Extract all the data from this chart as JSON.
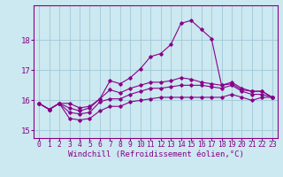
{
  "x": [
    0,
    1,
    2,
    3,
    4,
    5,
    6,
    7,
    8,
    9,
    10,
    11,
    12,
    13,
    14,
    15,
    16,
    17,
    18,
    19,
    20,
    21,
    22,
    23
  ],
  "line1": [
    15.9,
    15.7,
    15.9,
    15.9,
    15.75,
    15.8,
    16.05,
    16.65,
    16.55,
    16.75,
    17.05,
    17.45,
    17.55,
    17.85,
    18.55,
    18.65,
    18.35,
    18.05,
    16.5,
    16.55,
    16.35,
    16.3,
    16.3,
    16.1
  ],
  "line2": [
    15.9,
    15.7,
    15.9,
    15.75,
    15.65,
    15.75,
    16.05,
    16.35,
    16.25,
    16.4,
    16.5,
    16.6,
    16.6,
    16.65,
    16.75,
    16.7,
    16.6,
    16.55,
    16.5,
    16.6,
    16.4,
    16.3,
    16.3,
    16.1
  ],
  "line3": [
    15.9,
    15.7,
    15.9,
    15.6,
    15.55,
    15.6,
    15.95,
    16.05,
    16.05,
    16.2,
    16.3,
    16.4,
    16.4,
    16.45,
    16.5,
    16.5,
    16.5,
    16.45,
    16.4,
    16.5,
    16.3,
    16.2,
    16.2,
    16.1
  ],
  "line4": [
    15.9,
    15.7,
    15.9,
    15.4,
    15.35,
    15.4,
    15.65,
    15.8,
    15.8,
    15.95,
    16.0,
    16.05,
    16.1,
    16.1,
    16.1,
    16.1,
    16.1,
    16.1,
    16.1,
    16.2,
    16.1,
    16.0,
    16.1,
    16.1
  ],
  "line_color": "#880088",
  "bg_color": "#cce8f0",
  "grid_color": "#a0c8d8",
  "ylim": [
    14.75,
    19.15
  ],
  "yticks": [
    15,
    16,
    17,
    18
  ],
  "xticks": [
    0,
    1,
    2,
    3,
    4,
    5,
    6,
    7,
    8,
    9,
    10,
    11,
    12,
    13,
    14,
    15,
    16,
    17,
    18,
    19,
    20,
    21,
    22,
    23
  ],
  "xlabel": "Windchill (Refroidissement éolien,°C)",
  "xlabel_fontsize": 6.5,
  "tick_fontsize": 5.8,
  "ytick_fontsize": 6.5,
  "marker": "D",
  "marker_size": 1.8,
  "linewidth": 0.8
}
